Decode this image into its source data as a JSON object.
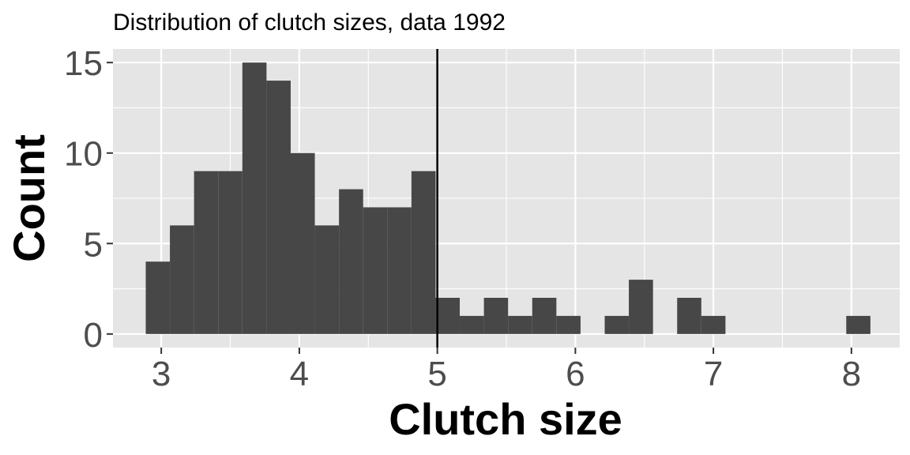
{
  "chart_data": {
    "type": "bar",
    "subtype": "histogram",
    "title": "Distribution of clutch sizes, data 1992",
    "xlabel": "Clutch size",
    "ylabel": "Count",
    "xlim": [
      2.65,
      8.35
    ],
    "ylim": [
      -0.75,
      15.75
    ],
    "x_ticks": [
      3,
      4,
      5,
      6,
      7,
      8
    ],
    "y_ticks": [
      0,
      5,
      10,
      15
    ],
    "grid": true,
    "bin_width": 0.175,
    "bins": [
      {
        "center": 2.975,
        "count": 4
      },
      {
        "center": 3.15,
        "count": 6
      },
      {
        "center": 3.325,
        "count": 9
      },
      {
        "center": 3.5,
        "count": 9
      },
      {
        "center": 3.675,
        "count": 15
      },
      {
        "center": 3.85,
        "count": 14
      },
      {
        "center": 4.025,
        "count": 10
      },
      {
        "center": 4.2,
        "count": 6
      },
      {
        "center": 4.375,
        "count": 8
      },
      {
        "center": 4.55,
        "count": 7
      },
      {
        "center": 4.725,
        "count": 7
      },
      {
        "center": 4.9,
        "count": 9
      },
      {
        "center": 5.075,
        "count": 2
      },
      {
        "center": 5.25,
        "count": 1
      },
      {
        "center": 5.425,
        "count": 2
      },
      {
        "center": 5.6,
        "count": 1
      },
      {
        "center": 5.775,
        "count": 2
      },
      {
        "center": 5.95,
        "count": 1
      },
      {
        "center": 6.125,
        "count": 0
      },
      {
        "center": 6.3,
        "count": 1
      },
      {
        "center": 6.475,
        "count": 3
      },
      {
        "center": 6.65,
        "count": 0
      },
      {
        "center": 6.825,
        "count": 2
      },
      {
        "center": 7.0,
        "count": 1
      },
      {
        "center": 7.175,
        "count": 0
      },
      {
        "center": 7.35,
        "count": 0
      },
      {
        "center": 7.525,
        "count": 0
      },
      {
        "center": 7.7,
        "count": 0
      },
      {
        "center": 7.875,
        "count": 0
      },
      {
        "center": 8.05,
        "count": 1
      }
    ],
    "reference_line_x": 5,
    "colors": {
      "bar": "#474747",
      "panel": "#e5e5e5",
      "grid": "#ffffff",
      "reference_line": "#000000"
    }
  }
}
